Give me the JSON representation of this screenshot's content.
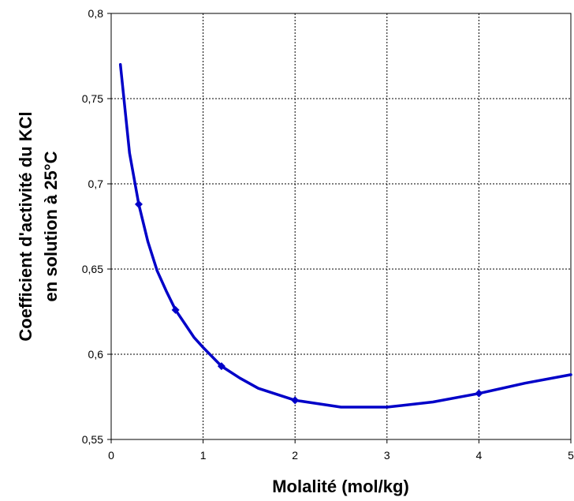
{
  "chart_data": {
    "type": "line",
    "title": "",
    "xlabel": "Molalité (mol/kg)",
    "ylabel_lines": [
      "Coefficient d'activité du KCl",
      "en solution à 25°C"
    ],
    "xlim": [
      0,
      5
    ],
    "ylim": [
      0.55,
      0.8
    ],
    "xticks": [
      0,
      1,
      2,
      3,
      4,
      5
    ],
    "xtick_labels": [
      "0",
      "1",
      "2",
      "3",
      "4",
      "5"
    ],
    "yticks": [
      0.55,
      0.6,
      0.65,
      0.7,
      0.75,
      0.8
    ],
    "ytick_labels": [
      "0,55",
      "0,6",
      "0,65",
      "0,7",
      "0,75",
      "0,8"
    ],
    "grid": true,
    "legend": "none",
    "series": [
      {
        "color": "#0000c8",
        "x": [
          0.1,
          0.2,
          0.3,
          0.4,
          0.5,
          0.6,
          0.7,
          0.8,
          0.9,
          1.0,
          1.2,
          1.4,
          1.6,
          2.0,
          2.5,
          3.0,
          3.5,
          4.0,
          4.5,
          5.0
        ],
        "y": [
          0.77,
          0.718,
          0.688,
          0.666,
          0.649,
          0.637,
          0.626,
          0.618,
          0.61,
          0.604,
          0.593,
          0.586,
          0.58,
          0.573,
          0.569,
          0.569,
          0.572,
          0.577,
          0.583,
          0.588
        ],
        "marker_x": [
          0.3,
          0.7,
          1.2,
          2.0,
          4.0
        ],
        "marker_y": [
          0.688,
          0.626,
          0.593,
          0.573,
          0.577
        ]
      }
    ]
  }
}
